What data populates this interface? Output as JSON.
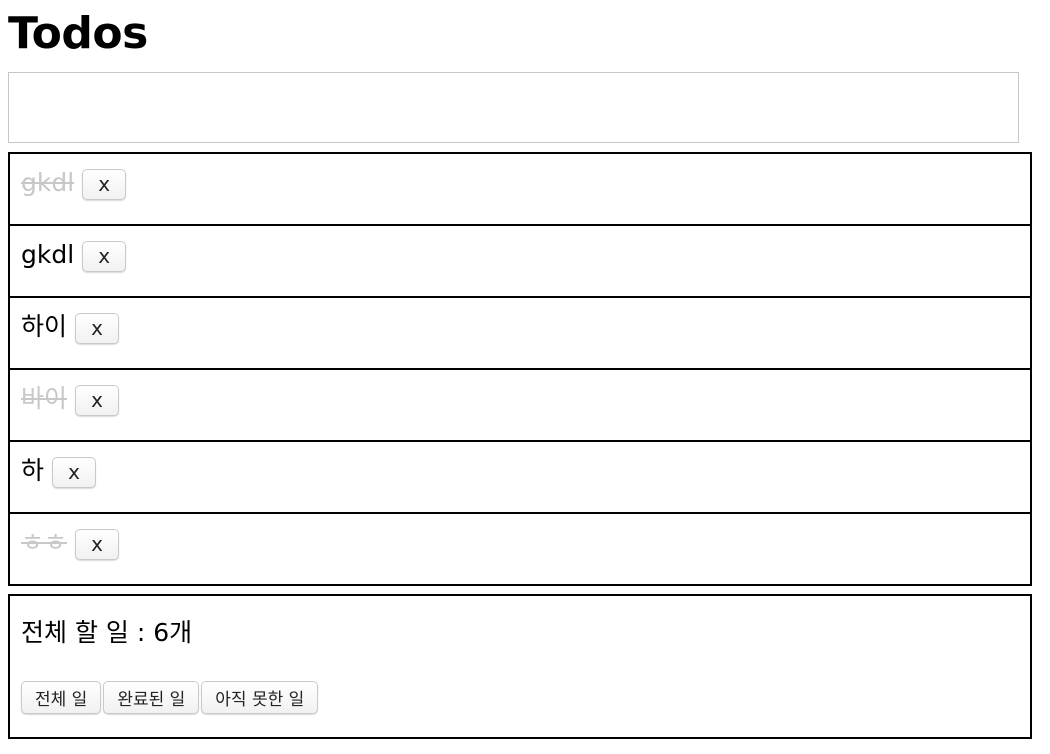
{
  "header": {
    "title": "Todos"
  },
  "new_todo": {
    "value": "",
    "placeholder": ""
  },
  "todos": [
    {
      "text": "gkdl",
      "completed": true,
      "delete_label": "x"
    },
    {
      "text": "gkdl",
      "completed": false,
      "delete_label": "x"
    },
    {
      "text": "하이",
      "completed": false,
      "delete_label": "x"
    },
    {
      "text": "바이",
      "completed": true,
      "delete_label": "x"
    },
    {
      "text": "하",
      "completed": false,
      "delete_label": "x"
    },
    {
      "text": "ㅎㅎ",
      "completed": true,
      "delete_label": "x"
    }
  ],
  "footer": {
    "count_text": "전체 할 일 : 6개",
    "filters": [
      {
        "label": "전체 일"
      },
      {
        "label": "완료된 일"
      },
      {
        "label": "아직 못한 일"
      }
    ]
  },
  "colors": {
    "completed_text": "#c8c8c8",
    "border": "#000000"
  }
}
